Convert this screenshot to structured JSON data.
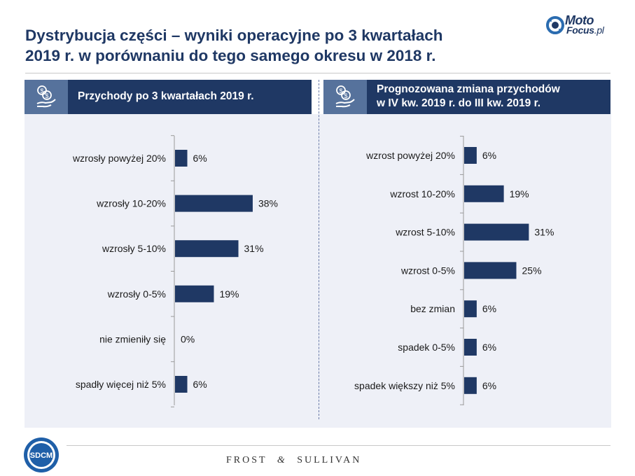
{
  "title": {
    "line1": "Dystrybucja części – wyniki operacyjne po 3 kwartałach",
    "line2": "2019 r. w porównaniu do tego samego okresu w 2018 r."
  },
  "logo": {
    "part1": "Moto",
    "part2": "Focus",
    "part3": ".pl"
  },
  "icons": {
    "header_icon": "money-hand-icon",
    "logo_icon": "gear-arrows-icon"
  },
  "colors": {
    "navy": "#1f3864",
    "bar": "#1f3864",
    "icon_box": "#56729c",
    "panel_bg": "#eef0f7"
  },
  "left_panel": {
    "header_line1": "Przychody po 3 kwartałach 2019 r.",
    "header_line2": ""
  },
  "right_panel": {
    "header_line1": "Prognozowana zmiana przychodów",
    "header_line2": "w IV kw. 2019 r. do III kw. 2019 r."
  },
  "chart_data": [
    {
      "type": "bar",
      "orientation": "horizontal",
      "categories": [
        "wzrosły powyżej 20%",
        "wzrosły 10-20%",
        "wzrosły 5-10%",
        "wzrosły 0-5%",
        "nie zmieniły się",
        "spadły więcej niż 5%"
      ],
      "values": [
        6,
        38,
        31,
        19,
        0,
        6
      ],
      "value_labels": [
        "6%",
        "38%",
        "31%",
        "19%",
        "0%",
        "6%"
      ],
      "xlim": [
        0,
        40
      ],
      "grid": false
    },
    {
      "type": "bar",
      "orientation": "horizontal",
      "categories": [
        "wzrost powyżej 20%",
        "wzrost 10-20%",
        "wzrost 5-10%",
        "wzrost 0-5%",
        "bez zmian",
        "spadek 0-5%",
        "spadek większy niż 5%"
      ],
      "values": [
        6,
        19,
        31,
        25,
        6,
        6,
        6
      ],
      "value_labels": [
        "6%",
        "19%",
        "31%",
        "25%",
        "6%",
        "6%",
        "6%"
      ],
      "xlim": [
        0,
        40
      ],
      "grid": false
    }
  ],
  "footer": {
    "sdcm": "SDCM",
    "frost": "FROST",
    "amp": "&",
    "sullivan": "SULLIVAN"
  }
}
